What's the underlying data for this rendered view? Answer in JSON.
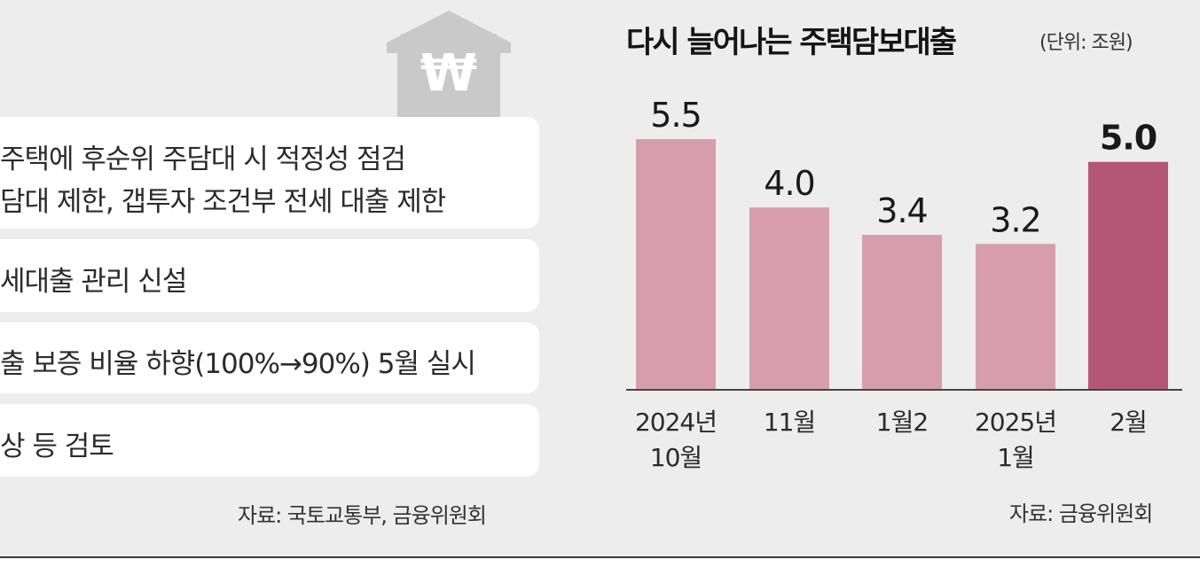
{
  "left_panel": {
    "items": [
      {
        "lines": [
          "주택에 후순위 주담대 시 적정성 점검",
          "담대 제한, 갭투자 조건부 전세 대출 제한"
        ]
      },
      {
        "lines": [
          "세대출 관리 신설"
        ]
      },
      {
        "lines": [
          "출 보증 비율 하향(100%→90%) 5월 실시"
        ]
      },
      {
        "lines": [
          "상 등 검토"
        ]
      }
    ],
    "house_icon": "house-with-won-sign-icon",
    "won_symbol": "₩",
    "source": "자료: 국토교통부, 금융위원회"
  },
  "chart_data": {
    "type": "bar",
    "title": "다시 늘어나는 주택담보대출",
    "unit": "(단위: 조원)",
    "categories": [
      [
        "2024년",
        "10월"
      ],
      [
        "11월"
      ],
      [
        "1월2"
      ],
      [
        "2025년",
        "1월"
      ],
      [
        "2월"
      ]
    ],
    "values": [
      5.5,
      4.0,
      3.4,
      3.2,
      5.0
    ],
    "value_labels": [
      "5.5",
      "4.0",
      "3.4",
      "3.2",
      "5.0"
    ],
    "highlight_index": 4,
    "ylim": [
      0,
      5.5
    ],
    "grid": false,
    "legend": "none",
    "colors": {
      "bar": "#d89dac",
      "highlight": "#b45675",
      "axis": "#444444"
    },
    "source": "자료: 금융위원회"
  }
}
